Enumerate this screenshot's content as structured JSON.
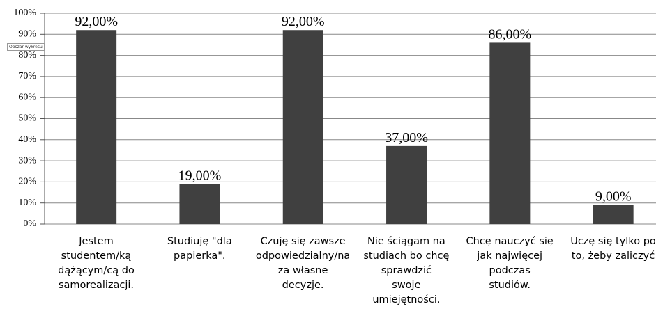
{
  "chart_data": {
    "type": "bar",
    "categories": [
      "Jestem\nstudentem/ką\ndążącym/cą do\nsamorealizacji.",
      "Studiuję \"dla\npapierka\".",
      "Czuję się zawsze\nodpowiedzialny/na\nza własne\ndecyzje.",
      "Nie ściągam na\nstudiach bo chcę\nsprawdzić\nswoje\numiejętności.",
      "Chcę nauczyć się\njak najwięcej\npodczas\nstudiów.",
      "Uczę się tylko po\nto, żeby zaliczyć"
    ],
    "values": [
      92,
      19,
      92,
      37,
      86,
      9
    ],
    "value_labels": [
      "92,00%",
      "19,00%",
      "92,00%",
      "37,00%",
      "86,00%",
      "9,00%"
    ],
    "color": "#404040",
    "ylim": [
      0,
      100
    ],
    "yticks": [
      {
        "value": 0,
        "label": "0%"
      },
      {
        "value": 10,
        "label": "10%"
      },
      {
        "value": 20,
        "label": "20%"
      },
      {
        "value": 30,
        "label": "30%"
      },
      {
        "value": 40,
        "label": "40%"
      },
      {
        "value": 50,
        "label": "50%"
      },
      {
        "value": 60,
        "label": "60%"
      },
      {
        "value": 70,
        "label": "70%"
      },
      {
        "value": 80,
        "label": "80%"
      },
      {
        "value": 90,
        "label": "90%"
      },
      {
        "value": 100,
        "label": "100%"
      }
    ],
    "grid": true,
    "tooltip": "Obszar wykresu"
  }
}
